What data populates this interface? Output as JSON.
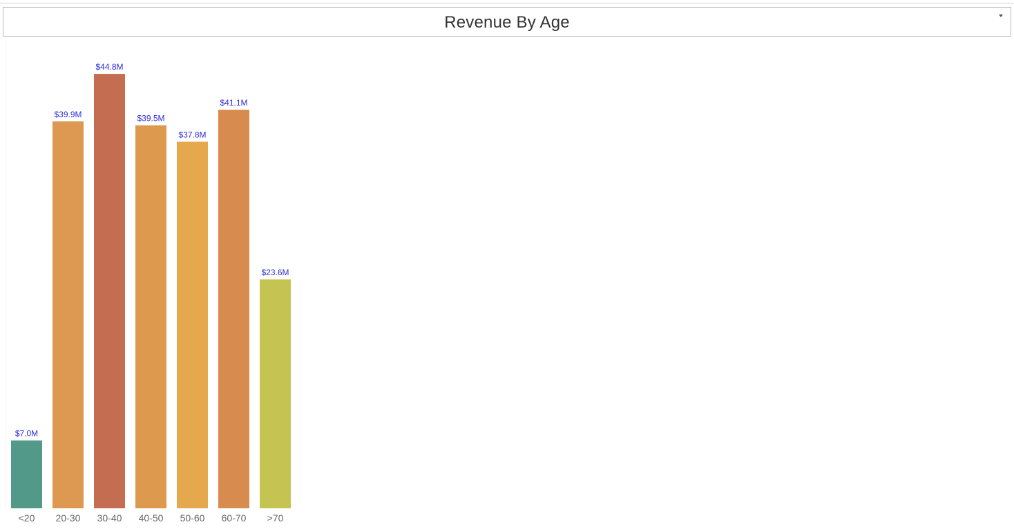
{
  "header": {
    "title": "Revenue By Age"
  },
  "chart_data": {
    "type": "bar",
    "title": "Revenue By Age",
    "xlabel": "",
    "ylabel": "",
    "categories": [
      "<20",
      "20-30",
      "30-40",
      "40-50",
      "50-60",
      "60-70",
      ">70"
    ],
    "values": [
      7.0,
      39.9,
      44.8,
      39.5,
      37.8,
      41.1,
      23.6
    ],
    "value_labels": [
      "$7.0M",
      "$39.9M",
      "$44.8M",
      "$39.5M",
      "$37.8M",
      "$41.1M",
      "$23.6M"
    ],
    "colors": [
      "#52998a",
      "#dd9852",
      "#c46d50",
      "#dd9a4f",
      "#e6a84d",
      "#d78b4e",
      "#c5c452"
    ],
    "label_color": "#2b2be0",
    "tick_color": "#666666",
    "grid": false,
    "legend": "none"
  }
}
